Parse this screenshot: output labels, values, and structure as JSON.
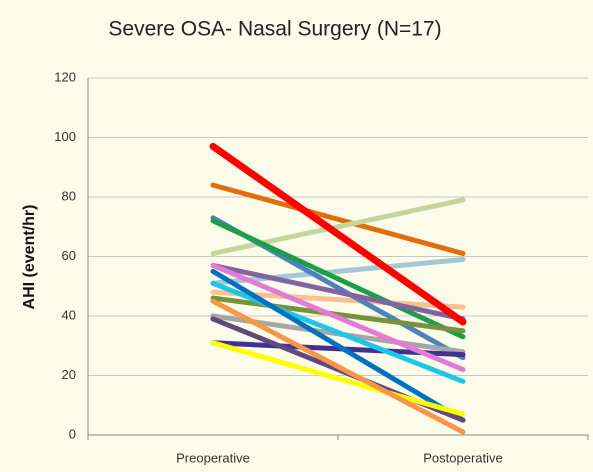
{
  "chart_data": {
    "type": "line",
    "title": "Severe OSA- Nasal Surgery (N=17)",
    "y_label": "AHI (event/hr)",
    "categories": [
      "Preoperative",
      "Postoperative"
    ],
    "ylim": [
      0,
      120
    ],
    "yticks": [
      0,
      20,
      40,
      60,
      80,
      100,
      120
    ],
    "grid": true,
    "series": [
      {
        "color": "#e46c0a",
        "values": [
          84,
          61
        ]
      },
      {
        "color": "#c3d69b",
        "values": [
          61,
          79
        ]
      },
      {
        "color": "#a5c8d6",
        "values": [
          51,
          59
        ]
      },
      {
        "color": "#fac090",
        "values": [
          48,
          43
        ]
      },
      {
        "color": "#4f81bd",
        "values": [
          73,
          26
        ]
      },
      {
        "color": "#1f9e4a",
        "values": [
          72,
          33
        ]
      },
      {
        "color": "#8064a2",
        "values": [
          57,
          39
        ]
      },
      {
        "color": "#76923c",
        "values": [
          46,
          35
        ]
      },
      {
        "color": "#a6a6a6",
        "values": [
          40,
          28
        ]
      },
      {
        "color": "#403294",
        "values": [
          31,
          27
        ]
      },
      {
        "color": "#e47ad8",
        "values": [
          57,
          22
        ]
      },
      {
        "color": "#1cc8e8",
        "values": [
          51,
          18
        ]
      },
      {
        "color": "#0070c0",
        "values": [
          55,
          5
        ]
      },
      {
        "color": "#604a7b",
        "values": [
          39,
          5
        ]
      },
      {
        "color": "#ffff00",
        "values": [
          31,
          7
        ]
      },
      {
        "color": "#f79646",
        "values": [
          45,
          1
        ]
      },
      {
        "color": "#ff0000",
        "values": [
          97,
          38
        ]
      }
    ]
  }
}
